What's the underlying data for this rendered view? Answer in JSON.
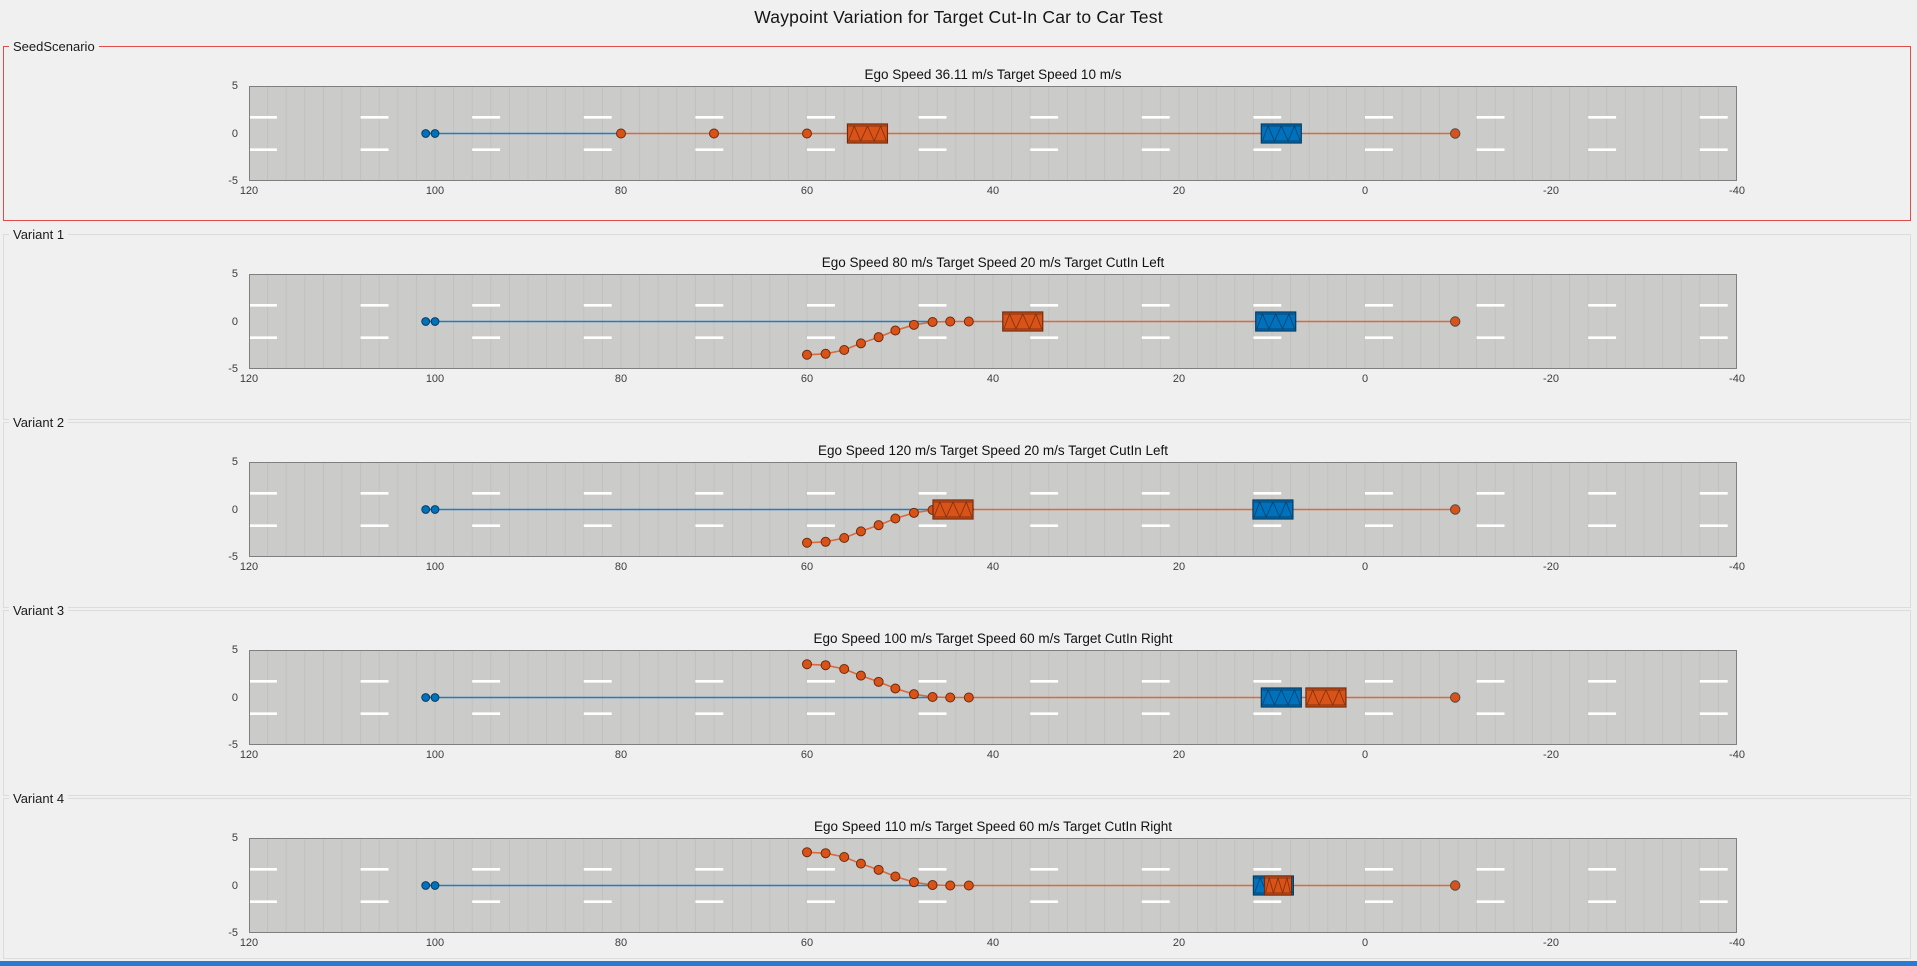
{
  "figure": {
    "title": "Waypoint Variation for Target Cut-In Car to Car Test"
  },
  "colors": {
    "background": "#f0f0f0",
    "road": "#cbcbca",
    "grid": "#c1c0bf",
    "road_border": "#7f7f7f",
    "lane_marking": "#ffffff",
    "ego": "#0072bd",
    "ego_edge": "#063a5e",
    "ego_line": "rgba(0,114,189,0.85)",
    "target": "#d95319",
    "target_edge": "#6f2a0c",
    "target_line": "rgba(217,83,25,0.8)",
    "seed_panel_border": "#e04c4c",
    "variant_panel_border": "#dcdcdc",
    "taskbar": "#2a7ad4",
    "tick_text": "#3c3c3c",
    "title_text": "#151515"
  },
  "axes": {
    "x_ticks": [
      120,
      100,
      80,
      60,
      40,
      20,
      0,
      -20,
      -40
    ],
    "y_ticks": [
      5,
      0,
      -5
    ],
    "x_range": [
      120,
      -40
    ],
    "y_range": [
      -5,
      5
    ],
    "x_reversed": true,
    "lane_line_y": [
      1.7,
      -1.7
    ],
    "lane_dash_length_m": 3,
    "lane_dash_gap_m": 9,
    "grid_spacing_m": 2
  },
  "chart_data": [
    {
      "type": "scatter",
      "label": "SeedScenario",
      "title": "Ego Speed 36.11 m/s Target Speed 10 m/s",
      "cut_in": "none",
      "ego_waypoints": [
        [
          101,
          0
        ],
        [
          100,
          0
        ]
      ],
      "ego_line_end_x": 80,
      "target_waypoints": [
        [
          80,
          0
        ],
        [
          70,
          0
        ],
        [
          60,
          0
        ]
      ],
      "end_point": [
        -9.7,
        0
      ],
      "ego_vehicle": {
        "x": 9.0,
        "length": 4.3
      },
      "target_vehicle": {
        "x": 53.5,
        "length": 4.3
      }
    },
    {
      "type": "scatter",
      "label": "Variant 1",
      "title": "Ego Speed 80 m/s Target Speed 20 m/s Target CutIn Left",
      "cut_in": "left",
      "ego_waypoints": [
        [
          101,
          0
        ],
        [
          100,
          0
        ]
      ],
      "ego_line_end_x": 46,
      "target_waypoints": [
        [
          60,
          -3.5
        ],
        [
          58,
          -3.4
        ],
        [
          56,
          -3.0
        ],
        [
          54.2,
          -2.3
        ],
        [
          52.3,
          -1.65
        ],
        [
          50.5,
          -0.95
        ],
        [
          48.5,
          -0.35
        ],
        [
          46.5,
          -0.05
        ],
        [
          44.6,
          0
        ],
        [
          42.6,
          0
        ]
      ],
      "end_point": [
        -9.7,
        0
      ],
      "ego_vehicle": {
        "x": 9.6,
        "length": 4.3
      },
      "target_vehicle": {
        "x": 36.8,
        "length": 4.3
      }
    },
    {
      "type": "scatter",
      "label": "Variant 2",
      "title": "Ego Speed 120 m/s Target Speed 20 m/s Target CutIn Left",
      "cut_in": "left",
      "ego_waypoints": [
        [
          101,
          0
        ],
        [
          100,
          0
        ]
      ],
      "ego_line_end_x": 46,
      "target_waypoints": [
        [
          60,
          -3.5
        ],
        [
          58,
          -3.4
        ],
        [
          56,
          -3.0
        ],
        [
          54.2,
          -2.3
        ],
        [
          52.3,
          -1.65
        ],
        [
          50.5,
          -0.95
        ],
        [
          48.5,
          -0.35
        ],
        [
          46.5,
          -0.05
        ],
        [
          44.6,
          0
        ],
        [
          42.6,
          0
        ]
      ],
      "end_point": [
        -9.7,
        0
      ],
      "ego_vehicle": {
        "x": 9.9,
        "length": 4.3
      },
      "target_vehicle": {
        "x": 44.3,
        "length": 4.3
      }
    },
    {
      "type": "scatter",
      "label": "Variant 3",
      "title": "Ego Speed 100 m/s Target Speed 60 m/s Target CutIn Right",
      "cut_in": "right",
      "ego_waypoints": [
        [
          101,
          0
        ],
        [
          100,
          0
        ]
      ],
      "ego_line_end_x": 46,
      "target_waypoints": [
        [
          60,
          3.5
        ],
        [
          58,
          3.4
        ],
        [
          56,
          3.0
        ],
        [
          54.2,
          2.3
        ],
        [
          52.3,
          1.65
        ],
        [
          50.5,
          0.95
        ],
        [
          48.5,
          0.35
        ],
        [
          46.5,
          0.05
        ],
        [
          44.6,
          0
        ],
        [
          42.6,
          0
        ]
      ],
      "end_point": [
        -9.7,
        0
      ],
      "ego_vehicle": {
        "x": 9.0,
        "length": 4.3
      },
      "target_vehicle": {
        "x": 4.2,
        "length": 4.3
      }
    },
    {
      "type": "scatter",
      "label": "Variant 4",
      "title": "Ego Speed 110 m/s Target Speed 60 m/s Target CutIn Right",
      "cut_in": "right",
      "ego_waypoints": [
        [
          101,
          0
        ],
        [
          100,
          0
        ]
      ],
      "ego_line_end_x": 46,
      "target_waypoints": [
        [
          60,
          3.5
        ],
        [
          58,
          3.4
        ],
        [
          56,
          3.0
        ],
        [
          54.2,
          2.3
        ],
        [
          52.3,
          1.65
        ],
        [
          50.5,
          0.95
        ],
        [
          48.5,
          0.35
        ],
        [
          46.5,
          0.05
        ],
        [
          44.6,
          0
        ],
        [
          42.6,
          0
        ]
      ],
      "end_point": [
        -9.7,
        0
      ],
      "ego_vehicle": {
        "x": 9.85,
        "length": 4.3
      },
      "target_vehicle": {
        "x": 9.35,
        "length": 2.9
      }
    }
  ]
}
